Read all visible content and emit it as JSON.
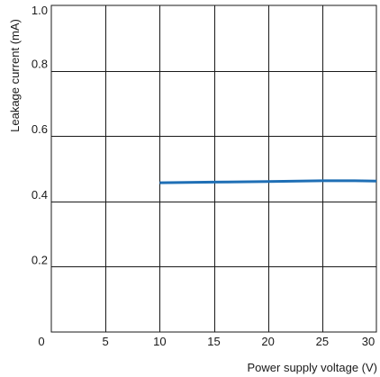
{
  "chart_data": {
    "type": "line",
    "title": "",
    "xlabel": "Power supply voltage (V)",
    "ylabel": "Leakage current (mA)",
    "xlim": [
      0,
      30
    ],
    "ylim": [
      0,
      1.0
    ],
    "x_ticks": [
      0,
      5,
      10,
      15,
      20,
      25,
      30
    ],
    "x_tick_labels": [
      "0",
      "5",
      "10",
      "15",
      "20",
      "25",
      "30"
    ],
    "y_ticks": [
      0.2,
      0.4,
      0.6,
      0.8,
      1.0
    ],
    "y_tick_labels": [
      "0.2",
      "0.4",
      "0.6",
      "0.8",
      "1.0"
    ],
    "grid": true,
    "series": [
      {
        "color": "#1f6fb5",
        "x": [
          10,
          15,
          20,
          25,
          28,
          30
        ],
        "y": [
          0.457,
          0.459,
          0.461,
          0.463,
          0.463,
          0.462
        ]
      }
    ],
    "colors": {
      "line": "#1f6fb5",
      "grid": "#1a1a1a",
      "text": "#1a1a1a",
      "background": "#ffffff"
    }
  }
}
